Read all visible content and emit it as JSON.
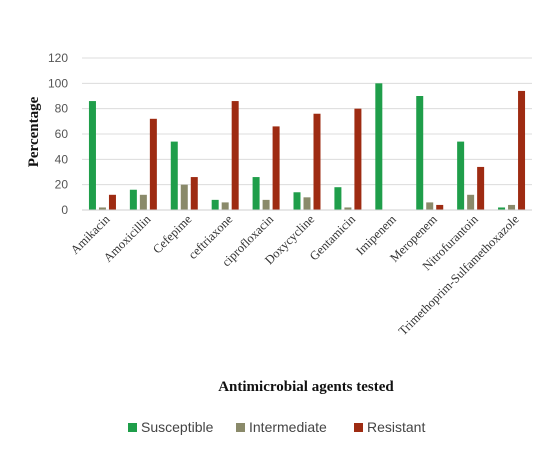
{
  "chart_data": {
    "type": "bar",
    "categories": [
      "Amikacin",
      "Amoxicillin",
      "Cefepime",
      "ceftriaxone",
      "ciprofloxacin",
      "Doxycycline",
      "Gentamicin",
      "Imipenem",
      "Meropenem",
      "Nitrofurantoin",
      "Trimethoprim-Sulfamethoxazole"
    ],
    "series": [
      {
        "name": "Susceptible",
        "color": "#1f9e4a",
        "values": [
          86,
          16,
          54,
          8,
          26,
          14,
          18,
          100,
          90,
          54,
          2
        ]
      },
      {
        "name": "Intermediate",
        "color": "#8a8a6a",
        "values": [
          2,
          12,
          20,
          6,
          8,
          10,
          2,
          0,
          6,
          12,
          4
        ]
      },
      {
        "name": "Resistant",
        "color": "#9e2b12",
        "values": [
          12,
          72,
          26,
          86,
          66,
          76,
          80,
          0,
          4,
          34,
          94
        ]
      }
    ],
    "ylabel": "Percentage",
    "xlabel": "Antimicrobial agents tested",
    "ylim": [
      0,
      120
    ],
    "yticks": [
      0,
      20,
      40,
      60,
      80,
      100,
      120
    ],
    "grid": true,
    "legend": "bottom"
  }
}
